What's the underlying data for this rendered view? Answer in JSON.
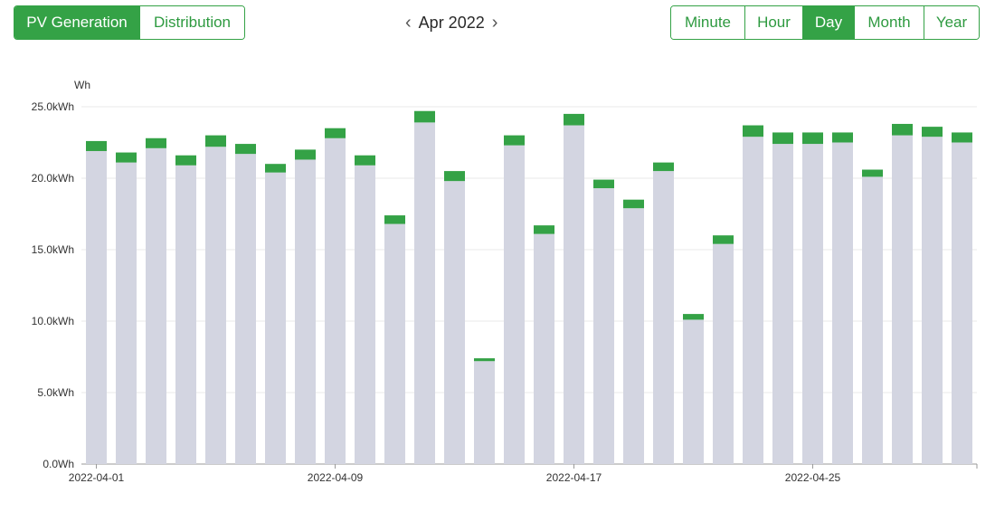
{
  "tabs_left": [
    {
      "label": "PV Generation",
      "active": true
    },
    {
      "label": "Distribution",
      "active": false
    }
  ],
  "date_nav": {
    "label": "Apr 2022",
    "prev_icon": "chevron-left-icon",
    "next_icon": "chevron-right-icon"
  },
  "tabs_right": [
    {
      "label": "Minute",
      "active": false
    },
    {
      "label": "Hour",
      "active": false
    },
    {
      "label": "Day",
      "active": true
    },
    {
      "label": "Month",
      "active": false
    },
    {
      "label": "Year",
      "active": false
    }
  ],
  "colors": {
    "accent": "#34a246",
    "bar_base": "#d3d5e1",
    "bar_top": "#34a246"
  },
  "chart_data": {
    "type": "bar",
    "ylabel": "Wh",
    "ylim": [
      0,
      25000
    ],
    "yticks": [
      "0.0Wh",
      "5.0kWh",
      "10.0kWh",
      "15.0kWh",
      "20.0kWh",
      "25.0kWh"
    ],
    "xticks": [
      "2022-04-01",
      "2022-04-09",
      "2022-04-17",
      "2022-04-25"
    ],
    "categories": [
      "2022-04-01",
      "2022-04-02",
      "2022-04-03",
      "2022-04-04",
      "2022-04-05",
      "2022-04-06",
      "2022-04-07",
      "2022-04-08",
      "2022-04-09",
      "2022-04-10",
      "2022-04-11",
      "2022-04-12",
      "2022-04-13",
      "2022-04-14",
      "2022-04-15",
      "2022-04-16",
      "2022-04-17",
      "2022-04-18",
      "2022-04-19",
      "2022-04-20",
      "2022-04-21",
      "2022-04-22",
      "2022-04-23",
      "2022-04-24",
      "2022-04-25",
      "2022-04-26",
      "2022-04-27",
      "2022-04-28",
      "2022-04-29",
      "2022-04-30"
    ],
    "series": [
      {
        "values": [
          21900,
          21100,
          22100,
          20900,
          22200,
          21700,
          20400,
          21300,
          22800,
          20900,
          16800,
          23900,
          19800,
          7200,
          22300,
          16100,
          23700,
          19300,
          17900,
          20500,
          10100,
          15400,
          22900,
          22400,
          22400,
          22500,
          20100,
          23000,
          22900,
          22500
        ]
      },
      {
        "values": [
          700,
          700,
          700,
          700,
          800,
          700,
          600,
          700,
          700,
          700,
          600,
          800,
          700,
          200,
          700,
          600,
          800,
          600,
          600,
          600,
          400,
          600,
          800,
          800,
          800,
          700,
          500,
          800,
          700,
          700
        ]
      }
    ],
    "grid": true
  }
}
